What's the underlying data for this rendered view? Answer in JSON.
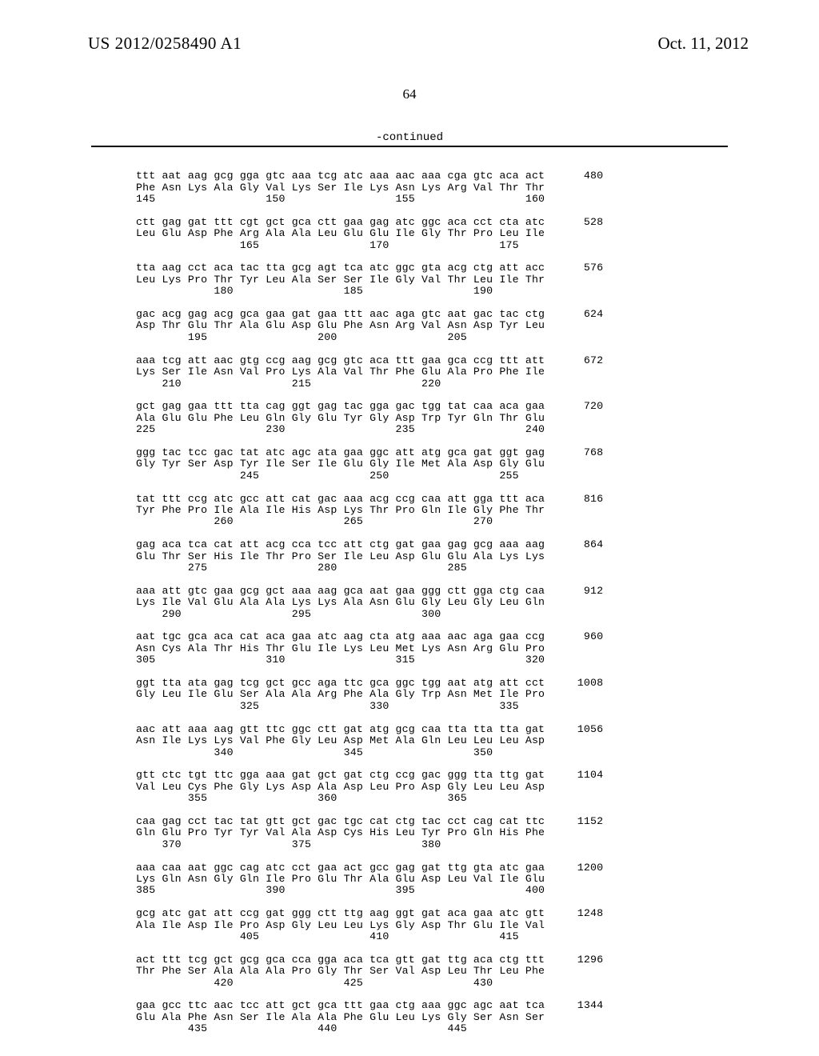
{
  "header": {
    "left": "US 2012/0258490 A1",
    "right": "Oct. 11, 2012"
  },
  "page_number": "64",
  "continued": "-continued",
  "sequence_text": "ttt aat aag gcg gga gtc aaa tcg atc aaa aac aaa cga gtc aca act      480\nPhe Asn Lys Ala Gly Val Lys Ser Ile Lys Asn Lys Arg Val Thr Thr\n145                 150                 155                 160\n\nctt gag gat ttt cgt gct gca ctt gaa gag atc ggc aca cct cta atc      528\nLeu Glu Asp Phe Arg Ala Ala Leu Glu Glu Ile Gly Thr Pro Leu Ile\n                165                 170                 175\n\ntta aag cct aca tac tta gcg agt tca atc ggc gta acg ctg att acc      576\nLeu Lys Pro Thr Tyr Leu Ala Ser Ser Ile Gly Val Thr Leu Ile Thr\n            180                 185                 190\n\ngac acg gag acg gca gaa gat gaa ttt aac aga gtc aat gac tac ctg      624\nAsp Thr Glu Thr Ala Glu Asp Glu Phe Asn Arg Val Asn Asp Tyr Leu\n        195                 200                 205\n\naaa tcg att aac gtg ccg aag gcg gtc aca ttt gaa gca ccg ttt att      672\nLys Ser Ile Asn Val Pro Lys Ala Val Thr Phe Glu Ala Pro Phe Ile\n    210                 215                 220\n\ngct gag gaa ttt tta cag ggt gag tac gga gac tgg tat caa aca gaa      720\nAla Glu Glu Phe Leu Gln Gly Glu Tyr Gly Asp Trp Tyr Gln Thr Glu\n225                 230                 235                 240\n\nggg tac tcc gac tat atc agc ata gaa ggc att atg gca gat ggt gag      768\nGly Tyr Ser Asp Tyr Ile Ser Ile Glu Gly Ile Met Ala Asp Gly Glu\n                245                 250                 255\n\ntat ttt ccg atc gcc att cat gac aaa acg ccg caa att gga ttt aca      816\nTyr Phe Pro Ile Ala Ile His Asp Lys Thr Pro Gln Ile Gly Phe Thr\n            260                 265                 270\n\ngag aca tca cat att acg cca tcc att ctg gat gaa gag gcg aaa aag      864\nGlu Thr Ser His Ile Thr Pro Ser Ile Leu Asp Glu Glu Ala Lys Lys\n        275                 280                 285\n\naaa att gtc gaa gcg gct aaa aag gca aat gaa ggg ctt gga ctg caa      912\nLys Ile Val Glu Ala Ala Lys Lys Ala Asn Glu Gly Leu Gly Leu Gln\n    290                 295                 300\n\naat tgc gca aca cat aca gaa atc aag cta atg aaa aac aga gaa ccg      960\nAsn Cys Ala Thr His Thr Glu Ile Lys Leu Met Lys Asn Arg Glu Pro\n305                 310                 315                 320\n\nggt tta ata gag tcg gct gcc aga ttc gca ggc tgg aat atg att cct     1008\nGly Leu Ile Glu Ser Ala Ala Arg Phe Ala Gly Trp Asn Met Ile Pro\n                325                 330                 335\n\naac att aaa aag gtt ttc ggc ctt gat atg gcg caa tta tta tta gat     1056\nAsn Ile Lys Lys Val Phe Gly Leu Asp Met Ala Gln Leu Leu Leu Asp\n            340                 345                 350\n\ngtt ctc tgt ttc gga aaa gat gct gat ctg ccg gac ggg tta ttg gat     1104\nVal Leu Cys Phe Gly Lys Asp Ala Asp Leu Pro Asp Gly Leu Leu Asp\n        355                 360                 365\n\ncaa gag cct tac tat gtt gct gac tgc cat ctg tac cct cag cat ttc     1152\nGln Glu Pro Tyr Tyr Val Ala Asp Cys His Leu Tyr Pro Gln His Phe\n    370                 375                 380\n\naaa caa aat ggc cag atc cct gaa act gcc gag gat ttg gta atc gaa     1200\nLys Gln Asn Gly Gln Ile Pro Glu Thr Ala Glu Asp Leu Val Ile Glu\n385                 390                 395                 400\n\ngcg atc gat att ccg gat ggg ctt ttg aag ggt gat aca gaa atc gtt     1248\nAla Ile Asp Ile Pro Asp Gly Leu Leu Lys Gly Asp Thr Glu Ile Val\n                405                 410                 415\n\nact ttt tcg gct gcg gca cca gga aca tca gtt gat ttg aca ctg ttt     1296\nThr Phe Ser Ala Ala Ala Pro Gly Thr Ser Val Asp Leu Thr Leu Phe\n            420                 425                 430\n\ngaa gcc ttc aac tcc att gct gca ttt gaa ctg aaa ggc agc aat tca     1344\nGlu Ala Phe Asn Ser Ile Ala Ala Phe Glu Leu Lys Gly Ser Asn Ser\n        435                 440                 445"
}
